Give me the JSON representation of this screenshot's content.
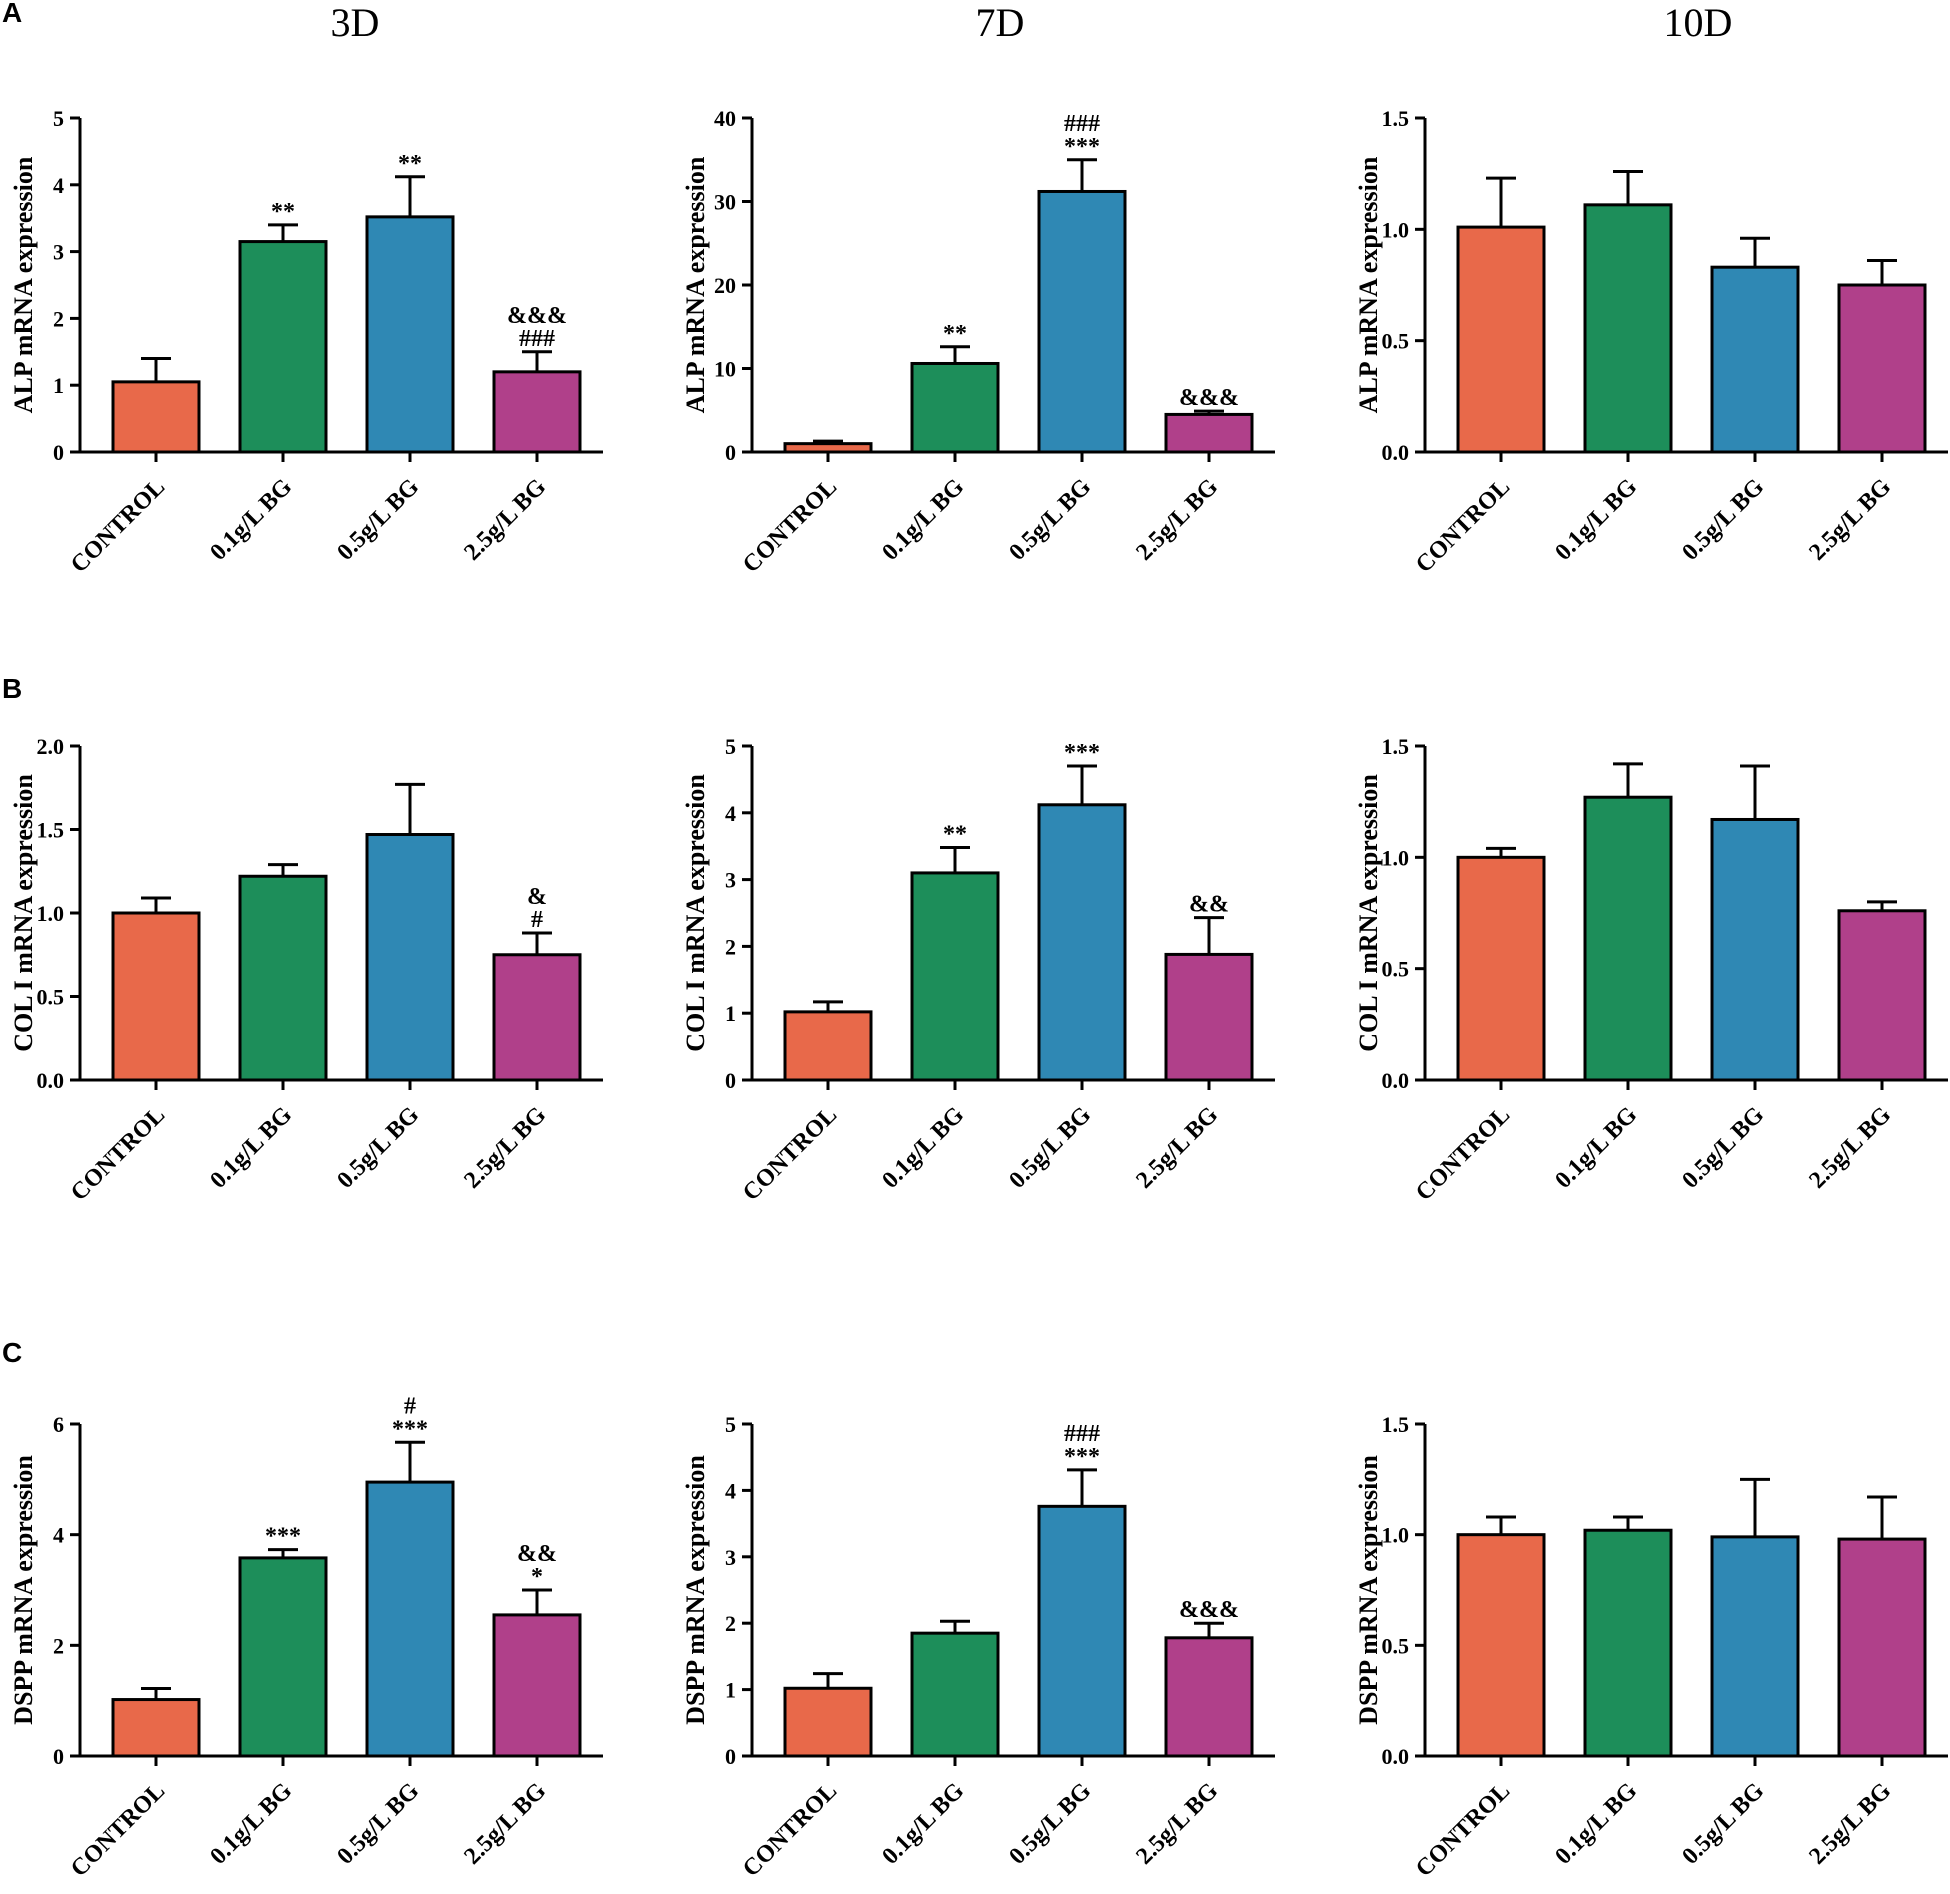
{
  "panel_letters": [
    "A",
    "B",
    "C"
  ],
  "column_titles": [
    "3D",
    "7D",
    "10D"
  ],
  "colors": [
    "#e8694a",
    "#1d8e5a",
    "#2f88b4",
    "#b0408a"
  ],
  "chart_data": [
    {
      "type": "bar",
      "title": "",
      "categories": [
        "CONTROL",
        "0.1g/L BG",
        "0.5g/L BG",
        "2.5g/L BG"
      ],
      "ylabel": "ALP mRNA expression",
      "ylim": [
        0,
        5
      ],
      "yticks": [
        "0",
        "1",
        "2",
        "3",
        "4",
        "5"
      ],
      "values": [
        1.05,
        3.15,
        3.52,
        1.2
      ],
      "errors": [
        0.35,
        0.25,
        0.6,
        0.3
      ],
      "annotations": [
        [
          ""
        ],
        [
          "**"
        ],
        [
          "**"
        ],
        [
          "###",
          "&&&"
        ]
      ]
    },
    {
      "type": "bar",
      "title": "",
      "categories": [
        "CONTROL",
        "0.1g/L BG",
        "0.5g/L BG",
        "2.5g/L BG"
      ],
      "ylabel": "ALP mRNA expression",
      "ylim": [
        0,
        40
      ],
      "yticks": [
        "0",
        "10",
        "20",
        "30",
        "40"
      ],
      "values": [
        1.0,
        10.6,
        31.2,
        4.5
      ],
      "errors": [
        0.3,
        2.0,
        3.8,
        0.4
      ],
      "annotations": [
        [
          ""
        ],
        [
          "**"
        ],
        [
          "***",
          "###"
        ],
        [
          "&&&"
        ]
      ]
    },
    {
      "type": "bar",
      "title": "",
      "categories": [
        "CONTROL",
        "0.1g/L BG",
        "0.5g/L BG",
        "2.5g/L BG"
      ],
      "ylabel": "ALP mRNA expression",
      "ylim": [
        0,
        1.5
      ],
      "yticks": [
        "0.0",
        "0.5",
        "1.0",
        "1.5"
      ],
      "values": [
        1.01,
        1.11,
        0.83,
        0.75
      ],
      "errors": [
        0.22,
        0.15,
        0.13,
        0.11
      ],
      "annotations": [
        [
          ""
        ],
        [
          ""
        ],
        [
          ""
        ],
        [
          ""
        ]
      ]
    },
    {
      "type": "bar",
      "title": "",
      "categories": [
        "CONTROL",
        "0.1g/L BG",
        "0.5g/L BG",
        "2.5g/L BG"
      ],
      "ylabel": "COL I mRNA expression",
      "ylim": [
        0,
        2.0
      ],
      "yticks": [
        "0.0",
        "0.5",
        "1.0",
        "1.5",
        "2.0"
      ],
      "values": [
        1.0,
        1.22,
        1.47,
        0.75
      ],
      "errors": [
        0.09,
        0.07,
        0.3,
        0.13
      ],
      "annotations": [
        [
          ""
        ],
        [
          ""
        ],
        [
          ""
        ],
        [
          "#",
          "&"
        ]
      ]
    },
    {
      "type": "bar",
      "title": "",
      "categories": [
        "CONTROL",
        "0.1g/L BG",
        "0.5g/L BG",
        "2.5g/L BG"
      ],
      "ylabel": "COL I mRNA expression",
      "ylim": [
        0,
        5
      ],
      "yticks": [
        "0",
        "1",
        "2",
        "3",
        "4",
        "5"
      ],
      "values": [
        1.02,
        3.1,
        4.12,
        1.88
      ],
      "errors": [
        0.15,
        0.38,
        0.58,
        0.55
      ],
      "annotations": [
        [
          ""
        ],
        [
          "**"
        ],
        [
          "***"
        ],
        [
          "&&"
        ]
      ]
    },
    {
      "type": "bar",
      "title": "",
      "categories": [
        "CONTROL",
        "0.1g/L BG",
        "0.5g/L BG",
        "2.5g/L BG"
      ],
      "ylabel": "COL I mRNA expression",
      "ylim": [
        0,
        1.5
      ],
      "yticks": [
        "0.0",
        "0.5",
        "1.0",
        "1.5"
      ],
      "values": [
        1.0,
        1.27,
        1.17,
        0.76
      ],
      "errors": [
        0.04,
        0.15,
        0.24,
        0.04
      ],
      "annotations": [
        [
          ""
        ],
        [
          ""
        ],
        [
          ""
        ],
        [
          ""
        ]
      ]
    },
    {
      "type": "bar",
      "title": "",
      "categories": [
        "CONTROL",
        "0.1g/L BG",
        "0.5g/L BG",
        "2.5g/L BG"
      ],
      "ylabel": "DSPP mRNA expression",
      "ylim": [
        0,
        6
      ],
      "yticks": [
        "0",
        "2",
        "4",
        "6"
      ],
      "values": [
        1.02,
        3.58,
        4.95,
        2.55
      ],
      "errors": [
        0.2,
        0.15,
        0.72,
        0.45
      ],
      "annotations": [
        [
          ""
        ],
        [
          "***"
        ],
        [
          "***",
          "#"
        ],
        [
          "*",
          "&&"
        ]
      ]
    },
    {
      "type": "bar",
      "title": "",
      "categories": [
        "CONTROL",
        "0.1g/L BG",
        "0.5g/L BG",
        "2.5g/L BG"
      ],
      "ylabel": "DSPP mRNA expression",
      "ylim": [
        0,
        5
      ],
      "yticks": [
        "0",
        "1",
        "2",
        "3",
        "4",
        "5"
      ],
      "values": [
        1.02,
        1.85,
        3.76,
        1.78
      ],
      "errors": [
        0.22,
        0.18,
        0.55,
        0.22
      ],
      "annotations": [
        [
          ""
        ],
        [
          ""
        ],
        [
          "***",
          "###"
        ],
        [
          "&&&"
        ]
      ]
    },
    {
      "type": "bar",
      "title": "",
      "categories": [
        "CONTROL",
        "0.1g/L BG",
        "0.5g/L BG",
        "2.5g/L BG"
      ],
      "ylabel": "DSPP mRNA expression",
      "ylim": [
        0,
        1.5
      ],
      "yticks": [
        "0.0",
        "0.5",
        "1.0",
        "1.5"
      ],
      "values": [
        1.0,
        1.02,
        0.99,
        0.98
      ],
      "errors": [
        0.08,
        0.06,
        0.26,
        0.19
      ],
      "annotations": [
        [
          ""
        ],
        [
          ""
        ],
        [
          ""
        ],
        [
          ""
        ]
      ]
    }
  ]
}
